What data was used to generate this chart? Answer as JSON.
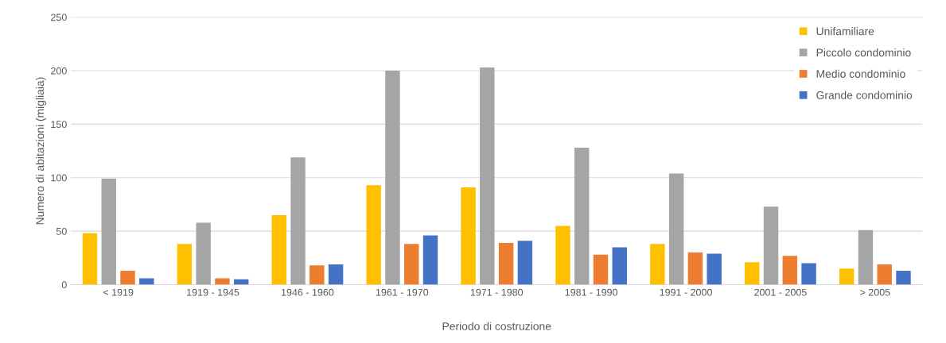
{
  "chart_data": {
    "type": "bar",
    "xlabel": "Periodo di costruzione",
    "ylabel": "Numero di abitazioni (migliaia)",
    "categories": [
      "< 1919",
      "1919 - 1945",
      "1946 - 1960",
      "1961 - 1970",
      "1971 - 1980",
      "1981 - 1990",
      "1991 - 2000",
      "2001 - 2005",
      "> 2005"
    ],
    "series": [
      {
        "name": "Unifamiliare",
        "color": "#ffc000",
        "values": [
          48,
          38,
          65,
          93,
          91,
          55,
          38,
          21,
          15
        ]
      },
      {
        "name": "Piccolo condominio",
        "color": "#a5a5a5",
        "values": [
          99,
          58,
          119,
          200,
          203,
          128,
          104,
          73,
          51
        ]
      },
      {
        "name": "Medio condominio",
        "color": "#ed7d31",
        "values": [
          13,
          6,
          18,
          38,
          39,
          28,
          30,
          27,
          19
        ]
      },
      {
        "name": "Grande condominio",
        "color": "#4472c4",
        "values": [
          6,
          5,
          19,
          46,
          41,
          35,
          29,
          20,
          13
        ]
      }
    ],
    "ylim": [
      0,
      250
    ],
    "yticks": [
      0,
      50,
      100,
      150,
      200,
      250
    ],
    "grid": "y",
    "legend": "top right"
  }
}
